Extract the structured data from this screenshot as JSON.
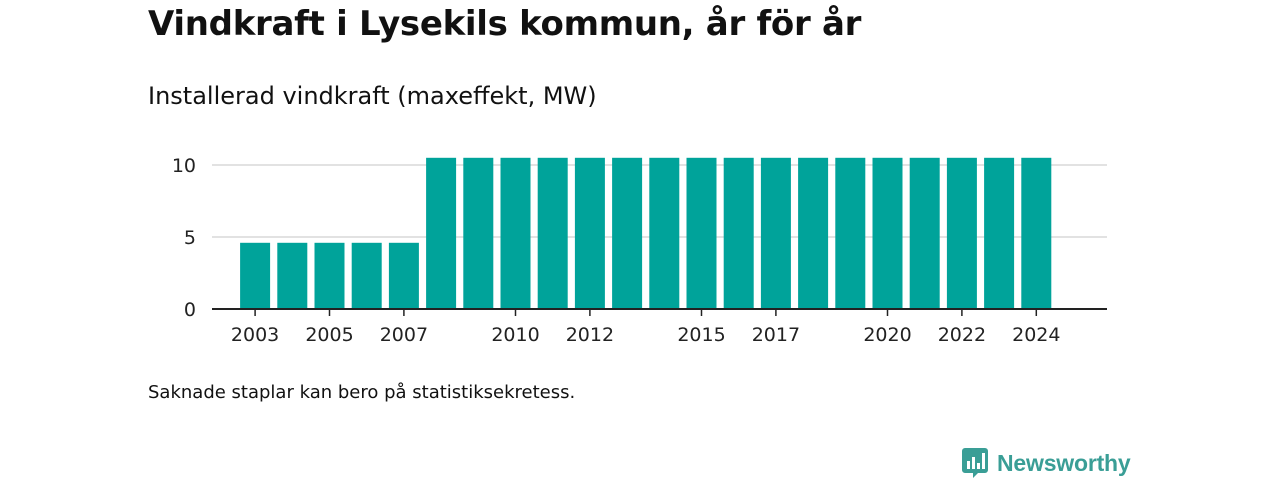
{
  "header": {
    "title": "Vindkraft i Lysekils kommun, år för år",
    "subtitle": "Installerad vindkraft (maxeffekt, MW)"
  },
  "footer": {
    "note": "Saknade staplar kan bero på statistiksekretess.",
    "brand": "Newsworthy"
  },
  "colors": {
    "bar": "#00a39a",
    "grid": "#d9d9d9",
    "axis": "#222222",
    "brand": "#3a9e96"
  },
  "chart_data": {
    "type": "bar",
    "title": "Vindkraft i Lysekils kommun, år för år",
    "subtitle": "Installerad vindkraft (maxeffekt, MW)",
    "xlabel": "",
    "ylabel": "",
    "categories": [
      2003,
      2004,
      2005,
      2006,
      2007,
      2008,
      2009,
      2010,
      2011,
      2012,
      2013,
      2014,
      2015,
      2016,
      2017,
      2018,
      2019,
      2020,
      2021,
      2022,
      2023,
      2024
    ],
    "values": [
      4.6,
      4.6,
      4.6,
      4.6,
      4.6,
      10.5,
      10.5,
      10.5,
      10.5,
      10.5,
      10.5,
      10.5,
      10.5,
      10.5,
      10.5,
      10.5,
      10.5,
      10.5,
      10.5,
      10.5,
      10.5,
      10.5
    ],
    "ylim": [
      0,
      10.5
    ],
    "yticks": [
      0,
      5,
      10
    ],
    "xticks": [
      2003,
      2005,
      2007,
      2010,
      2012,
      2015,
      2017,
      2020,
      2022,
      2024
    ],
    "grid": true,
    "legend": "none"
  }
}
